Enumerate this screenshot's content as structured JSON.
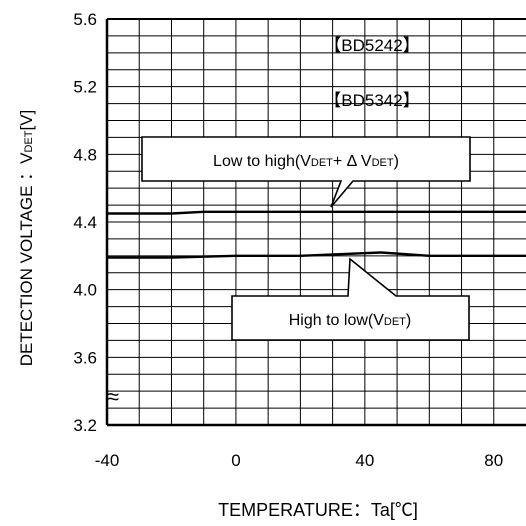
{
  "chart_data": {
    "type": "line",
    "title": "",
    "xlabel": "TEMPERATURE：Ta[℃]",
    "ylabel": "DETECTION VOLTAGE ：VDET[V]",
    "ylabel_main": "DETECTION VOLTAGE ：V",
    "ylabel_sub": "DET",
    "ylabel_unit": "[V]",
    "xlim": [
      -40,
      90
    ],
    "ylim": [
      3.2,
      5.6
    ],
    "grid": true,
    "axis_break": "≈",
    "x_ticks": [
      {
        "value": -40,
        "label": "-40"
      },
      {
        "value": 0,
        "label": "0"
      },
      {
        "value": 40,
        "label": "40"
      },
      {
        "value": 80,
        "label": "80"
      }
    ],
    "y_ticks": [
      {
        "value": 5.6,
        "label": "5.6"
      },
      {
        "value": 5.2,
        "label": "5.2"
      },
      {
        "value": 4.8,
        "label": "4.8"
      },
      {
        "value": 4.4,
        "label": "4.4"
      },
      {
        "value": 4.0,
        "label": "4.0"
      },
      {
        "value": 3.6,
        "label": "3.6"
      },
      {
        "value": 3.2,
        "label": "3.2"
      }
    ],
    "parts": [
      "【BD5242】",
      "【BD5342】"
    ],
    "series": [
      {
        "name": "Low to high(VDET+ Δ VDET)",
        "x": [
          -40,
          -20,
          -10,
          0,
          20,
          40,
          60,
          80,
          90
        ],
        "y": [
          4.45,
          4.45,
          4.46,
          4.46,
          4.46,
          4.46,
          4.46,
          4.46,
          4.46
        ]
      },
      {
        "name": "High to low(VDET)",
        "x": [
          -40,
          -20,
          0,
          20,
          45,
          60,
          80,
          90
        ],
        "y": [
          4.19,
          4.19,
          4.2,
          4.2,
          4.22,
          4.2,
          4.2,
          4.2
        ]
      }
    ],
    "annotations": [
      {
        "pre": "Low to high(V",
        "sub": "DET",
        "mid": "+ Δ V",
        "sub2": "DET",
        "post": ")"
      },
      {
        "pre": "High to low(V",
        "sub": "DET",
        "mid": "",
        "sub2": "",
        "post": ")"
      }
    ],
    "colors": {
      "line": "#000000",
      "grid": "#000000",
      "background": "#ffffff"
    }
  }
}
